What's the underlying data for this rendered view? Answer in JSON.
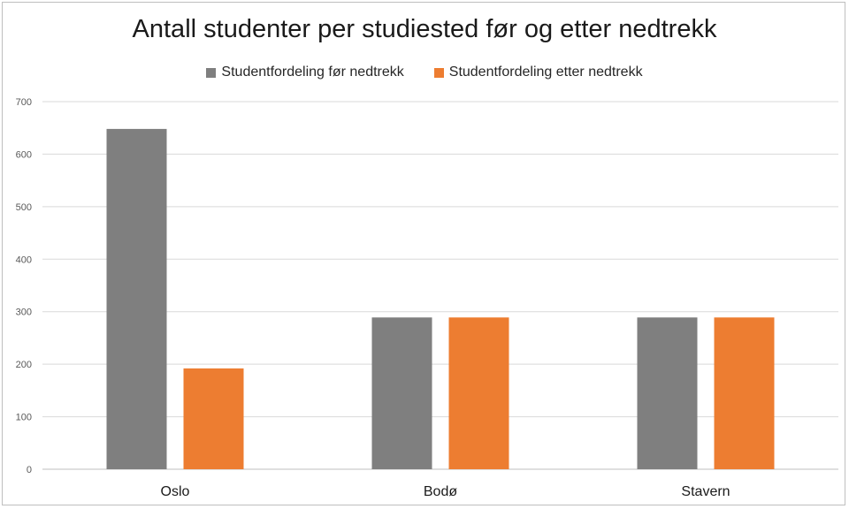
{
  "chart_data": {
    "type": "bar",
    "title": "Antall studenter per studiested før og etter nedtrekk",
    "xlabel": "",
    "ylabel": "",
    "categories": [
      "Oslo",
      "Bodø",
      "Stavern"
    ],
    "series": [
      {
        "name": "Studentfordeling før nedtrekk",
        "values": [
          648,
          289,
          289
        ],
        "color": "#7f7f7f"
      },
      {
        "name": "Studentfordeling etter nedtrekk",
        "values": [
          192,
          289,
          289
        ],
        "color": "#ed7d31"
      }
    ],
    "ylim": [
      0,
      700
    ],
    "yticks": [
      0,
      100,
      200,
      300,
      400,
      500,
      600,
      700
    ],
    "grid": true,
    "legend_position": "top"
  }
}
